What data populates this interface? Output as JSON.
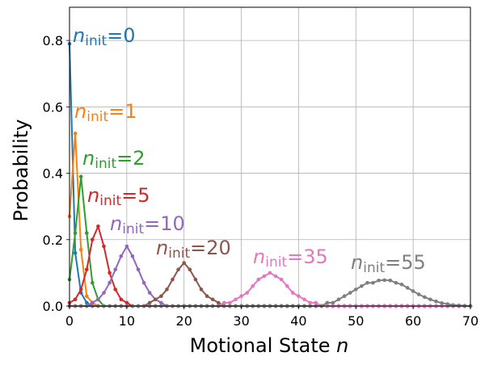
{
  "chart_data": {
    "type": "line",
    "xlabel": "Motional State n",
    "ylabel": "Probability",
    "xlim": [
      0,
      70
    ],
    "ylim": [
      0,
      0.9
    ],
    "xticks": [
      0,
      10,
      20,
      30,
      40,
      50,
      60,
      70
    ],
    "yticks": [
      0.0,
      0.2,
      0.4,
      0.6,
      0.8
    ],
    "grid": true,
    "series": [
      {
        "name": "n_init=0",
        "color": "#1f77b4",
        "annotation": {
          "base": "n",
          "sub": "init",
          "suffix": "=0"
        }
      },
      {
        "name": "n_init=1",
        "color": "#ff7f0e",
        "annotation": {
          "base": "n",
          "sub": "init",
          "suffix": "=1"
        }
      },
      {
        "name": "n_init=2",
        "color": "#2ca02c",
        "annotation": {
          "base": "n",
          "sub": "init",
          "suffix": "=2"
        }
      },
      {
        "name": "n_init=5",
        "color": "#d62728",
        "annotation": {
          "base": "n",
          "sub": "init",
          "suffix": "=5"
        }
      },
      {
        "name": "n_init=10",
        "color": "#9467bd",
        "annotation": {
          "base": "n",
          "sub": "init",
          "suffix": "=10"
        }
      },
      {
        "name": "n_init=20",
        "color": "#8c564b",
        "annotation": {
          "base": "n",
          "sub": "init",
          "suffix": "=20"
        }
      },
      {
        "name": "n_init=35",
        "color": "#e377c2",
        "annotation": {
          "base": "n",
          "sub": "init",
          "suffix": "=35"
        }
      },
      {
        "name": "n_init=55",
        "color": "#7f7f7f",
        "annotation": {
          "base": "n",
          "sub": "init",
          "suffix": "=55"
        }
      }
    ],
    "x": [
      0,
      1,
      2,
      3,
      4,
      5,
      6,
      7,
      8,
      9,
      10,
      11,
      12,
      13,
      14,
      15,
      16,
      17,
      18,
      19,
      20,
      21,
      22,
      23,
      24,
      25,
      26,
      27,
      28,
      29,
      30,
      31,
      32,
      33,
      34,
      35,
      36,
      37,
      38,
      39,
      40,
      41,
      42,
      43,
      44,
      45,
      46,
      47,
      48,
      49,
      50,
      51,
      52,
      53,
      54,
      55,
      56,
      57,
      58,
      59,
      60,
      61,
      62,
      63,
      64,
      65,
      66,
      67,
      68,
      69,
      70
    ],
    "values": [
      [
        0.79,
        0.16,
        0.04,
        0.01,
        0.0,
        0.0,
        0,
        0,
        0,
        0,
        0,
        0,
        0,
        0,
        0,
        0,
        0,
        0,
        0,
        0,
        0,
        0,
        0,
        0,
        0,
        0,
        0,
        0,
        0,
        0,
        0,
        0,
        0,
        0,
        0,
        0,
        0,
        0,
        0,
        0,
        0,
        0,
        0,
        0,
        0,
        0,
        0,
        0,
        0,
        0,
        0,
        0,
        0,
        0,
        0,
        0,
        0,
        0,
        0,
        0,
        0,
        0,
        0,
        0,
        0,
        0,
        0,
        0,
        0,
        0,
        0
      ],
      [
        0.27,
        0.52,
        0.17,
        0.03,
        0.01,
        0.0,
        0,
        0,
        0,
        0,
        0,
        0,
        0,
        0,
        0,
        0,
        0,
        0,
        0,
        0,
        0,
        0,
        0,
        0,
        0,
        0,
        0,
        0,
        0,
        0,
        0,
        0,
        0,
        0,
        0,
        0,
        0,
        0,
        0,
        0,
        0,
        0,
        0,
        0,
        0,
        0,
        0,
        0,
        0,
        0,
        0,
        0,
        0,
        0,
        0,
        0,
        0,
        0,
        0,
        0,
        0,
        0,
        0,
        0,
        0,
        0,
        0,
        0,
        0,
        0,
        0
      ],
      [
        0.08,
        0.22,
        0.39,
        0.22,
        0.07,
        0.02,
        0.0,
        0,
        0,
        0,
        0,
        0,
        0,
        0,
        0,
        0,
        0,
        0,
        0,
        0,
        0,
        0,
        0,
        0,
        0,
        0,
        0,
        0,
        0,
        0,
        0,
        0,
        0,
        0,
        0,
        0,
        0,
        0,
        0,
        0,
        0,
        0,
        0,
        0,
        0,
        0,
        0,
        0,
        0,
        0,
        0,
        0,
        0,
        0,
        0,
        0,
        0,
        0,
        0,
        0,
        0,
        0,
        0,
        0,
        0,
        0,
        0,
        0,
        0,
        0,
        0
      ],
      [
        0.01,
        0.02,
        0.05,
        0.11,
        0.2,
        0.24,
        0.18,
        0.1,
        0.05,
        0.02,
        0.01,
        0.0,
        0,
        0,
        0,
        0,
        0,
        0,
        0,
        0,
        0,
        0,
        0,
        0,
        0,
        0,
        0,
        0,
        0,
        0,
        0,
        0,
        0,
        0,
        0,
        0,
        0,
        0,
        0,
        0,
        0,
        0,
        0,
        0,
        0,
        0,
        0,
        0,
        0,
        0,
        0,
        0,
        0,
        0,
        0,
        0,
        0,
        0,
        0,
        0,
        0,
        0,
        0,
        0,
        0,
        0,
        0,
        0,
        0,
        0,
        0
      ],
      [
        0.0,
        0.0,
        0.0,
        0.0,
        0.01,
        0.02,
        0.04,
        0.07,
        0.11,
        0.15,
        0.18,
        0.15,
        0.11,
        0.07,
        0.04,
        0.02,
        0.01,
        0.0,
        0.0,
        0,
        0,
        0,
        0,
        0,
        0,
        0,
        0,
        0,
        0,
        0,
        0,
        0,
        0,
        0,
        0,
        0,
        0,
        0,
        0,
        0,
        0,
        0,
        0,
        0,
        0,
        0,
        0,
        0,
        0,
        0,
        0,
        0,
        0,
        0,
        0,
        0,
        0,
        0,
        0,
        0,
        0,
        0,
        0,
        0,
        0,
        0,
        0,
        0,
        0,
        0,
        0
      ],
      [
        0,
        0,
        0,
        0,
        0,
        0,
        0,
        0,
        0,
        0,
        0,
        0.0,
        0.0,
        0.0,
        0.01,
        0.02,
        0.03,
        0.05,
        0.08,
        0.11,
        0.13,
        0.11,
        0.08,
        0.05,
        0.03,
        0.02,
        0.01,
        0.0,
        0.0,
        0.0,
        0,
        0,
        0,
        0,
        0,
        0,
        0,
        0,
        0,
        0,
        0,
        0,
        0,
        0,
        0,
        0,
        0,
        0,
        0,
        0,
        0,
        0,
        0,
        0,
        0,
        0,
        0,
        0,
        0,
        0,
        0,
        0,
        0,
        0,
        0,
        0,
        0,
        0,
        0,
        0,
        0
      ],
      [
        0,
        0,
        0,
        0,
        0,
        0,
        0,
        0,
        0,
        0,
        0,
        0,
        0,
        0,
        0,
        0,
        0,
        0,
        0,
        0,
        0,
        0,
        0,
        0,
        0.0,
        0.0,
        0.0,
        0.01,
        0.01,
        0.02,
        0.03,
        0.04,
        0.06,
        0.08,
        0.09,
        0.1,
        0.09,
        0.08,
        0.06,
        0.04,
        0.03,
        0.02,
        0.01,
        0.01,
        0.0,
        0.0,
        0.0,
        0,
        0,
        0,
        0,
        0,
        0,
        0,
        0,
        0,
        0,
        0,
        0,
        0,
        0,
        0,
        0,
        0,
        0,
        0,
        0,
        0,
        0,
        0,
        0
      ],
      [
        0,
        0,
        0,
        0,
        0,
        0,
        0,
        0,
        0,
        0,
        0,
        0,
        0,
        0,
        0,
        0,
        0,
        0,
        0,
        0,
        0,
        0,
        0,
        0,
        0,
        0,
        0,
        0,
        0,
        0,
        0,
        0,
        0,
        0,
        0,
        0,
        0,
        0,
        0,
        0,
        0,
        0,
        0.0,
        0.0,
        0.0,
        0.01,
        0.01,
        0.02,
        0.03,
        0.04,
        0.05,
        0.06,
        0.07,
        0.07,
        0.077,
        0.078,
        0.077,
        0.07,
        0.065,
        0.055,
        0.045,
        0.035,
        0.027,
        0.02,
        0.014,
        0.009,
        0.006,
        0.003,
        0.002,
        0.001,
        0.0
      ]
    ]
  }
}
